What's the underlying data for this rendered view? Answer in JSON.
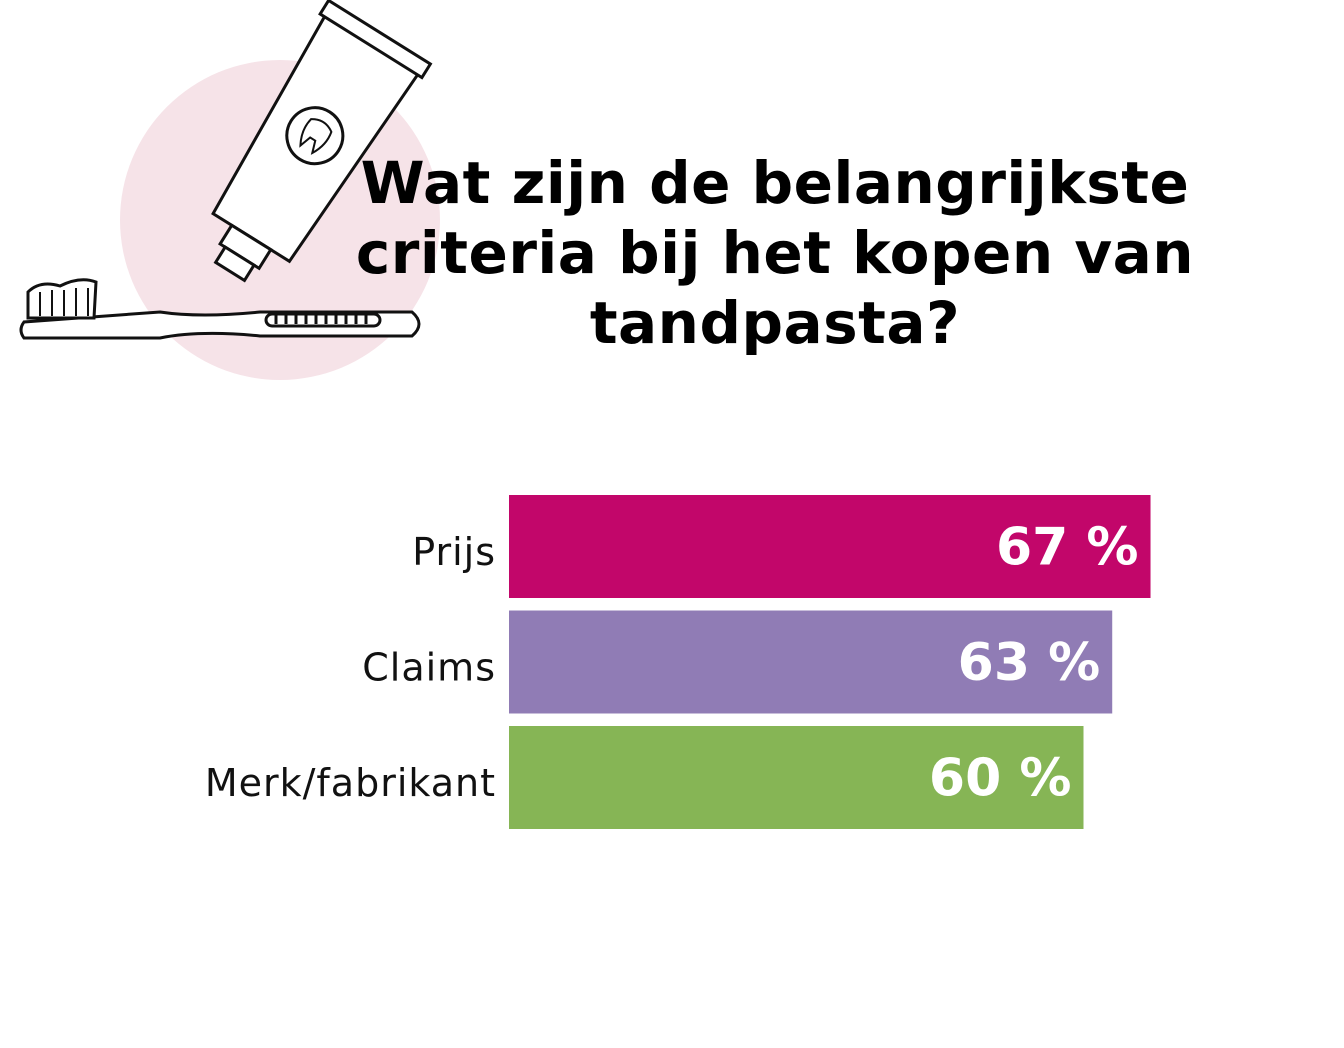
{
  "chart_data": {
    "type": "bar",
    "orientation": "horizontal",
    "title": "Wat zijn de belangrijkste criteria bij het kopen van tandpasta?",
    "categories": [
      "Prijs",
      "Claims",
      "Merk/fabrikant"
    ],
    "values": [
      67,
      63,
      60
    ],
    "value_labels": [
      "67 %",
      "63 %",
      "60 %"
    ],
    "colors": [
      "#c2066a",
      "#907cb5",
      "#86b555"
    ]
  }
}
